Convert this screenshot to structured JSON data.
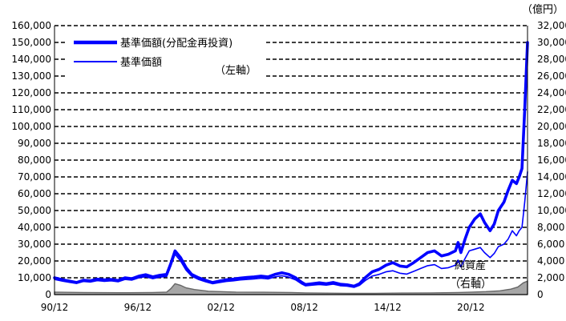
{
  "chart_data": {
    "type": "line",
    "left_axis": {
      "min": 0,
      "max": 160000,
      "step": 10000,
      "tick_labels": [
        "0",
        "10,000",
        "20,000",
        "30,000",
        "40,000",
        "50,000",
        "60,000",
        "70,000",
        "80,000",
        "90,000",
        "100,000",
        "110,000",
        "120,000",
        "130,000",
        "140,000",
        "150,000",
        "160,000"
      ]
    },
    "right_axis": {
      "min": 0,
      "max": 32000,
      "step": 2000,
      "unit": "（億円）",
      "tick_labels": [
        "0",
        "2,000",
        "4,000",
        "6,000",
        "8,000",
        "10,000",
        "12,000",
        "14,000",
        "16,000",
        "18,000",
        "20,000",
        "22,000",
        "24,000",
        "26,000",
        "28,000",
        "30,000",
        "32,000"
      ]
    },
    "x_axis": {
      "min": 1990.92,
      "max": 2025.0,
      "tick_labels": [
        "90/12",
        "96/12",
        "02/12",
        "08/12",
        "14/12",
        "20/12"
      ],
      "tick_values": [
        1990.92,
        1996.92,
        2002.92,
        2008.92,
        2014.92,
        2020.92
      ]
    },
    "grid": true,
    "legend": {
      "placement": "top-left",
      "axis_note": "（左軸）",
      "entries": [
        "基準価額(分配金再投資)",
        "基準価額"
      ]
    },
    "annotations": {
      "net_assets_label": "純資産",
      "net_assets_axis_note": "（右軸）"
    },
    "colors": {
      "line": "#0000ff",
      "area": "#666666",
      "area_fill": "#a6a6a6",
      "grid": "#000000"
    },
    "series": [
      {
        "name": "基準価額(分配金再投資)",
        "axis": "left",
        "style": "thick",
        "x": [
          1990.92,
          1991.5,
          1992.0,
          1992.5,
          1993.0,
          1993.5,
          1994.0,
          1994.5,
          1995.0,
          1995.5,
          1996.0,
          1996.5,
          1997.0,
          1997.5,
          1998.0,
          1998.5,
          1999.0,
          1999.3,
          1999.6,
          2000.0,
          2000.4,
          2000.8,
          2001.3,
          2001.8,
          2002.3,
          2002.8,
          2003.3,
          2003.8,
          2004.3,
          2004.8,
          2005.3,
          2005.8,
          2006.3,
          2006.8,
          2007.3,
          2007.8,
          2008.3,
          2008.7,
          2009.0,
          2009.5,
          2010.0,
          2010.5,
          2011.0,
          2011.5,
          2012.0,
          2012.5,
          2012.9,
          2013.3,
          2013.8,
          2014.3,
          2014.8,
          2015.3,
          2015.8,
          2016.3,
          2016.8,
          2017.3,
          2017.8,
          2018.3,
          2018.8,
          2019.3,
          2019.8,
          2020.0,
          2020.2,
          2020.5,
          2020.8,
          2021.2,
          2021.6,
          2021.9,
          2022.3,
          2022.6,
          2022.9,
          2023.3,
          2023.6,
          2023.9,
          2024.2,
          2024.4,
          2024.6,
          2024.8,
          2025.0
        ],
        "values": [
          10000,
          8800,
          8000,
          7200,
          8500,
          8200,
          9200,
          8700,
          9000,
          8400,
          10000,
          9500,
          11000,
          11800,
          10500,
          11500,
          12000,
          18500,
          26000,
          22000,
          16000,
          12000,
          10000,
          8500,
          7200,
          8000,
          8800,
          9200,
          9800,
          10200,
          10500,
          11000,
          10500,
          12000,
          13000,
          12000,
          10000,
          7500,
          6000,
          6500,
          7000,
          6500,
          7200,
          6200,
          5800,
          5000,
          6500,
          10000,
          13500,
          15000,
          17500,
          19000,
          17000,
          16500,
          19000,
          22000,
          25000,
          26000,
          23000,
          24000,
          26000,
          31000,
          25000,
          33000,
          40000,
          45000,
          48000,
          43000,
          38000,
          42000,
          50000,
          55000,
          62000,
          68000,
          66000,
          70000,
          75000,
          110000,
          150000
        ]
      },
      {
        "name": "基準価額",
        "axis": "left",
        "style": "thin",
        "x": [
          1990.92,
          1991.5,
          1992.0,
          1992.5,
          1993.0,
          1993.5,
          1994.0,
          1994.5,
          1995.0,
          1995.5,
          1996.0,
          1996.5,
          1997.0,
          1997.5,
          1998.0,
          1998.5,
          1999.0,
          1999.3,
          1999.6,
          2000.0,
          2000.4,
          2000.8,
          2001.3,
          2001.8,
          2002.3,
          2002.8,
          2003.3,
          2003.8,
          2004.3,
          2004.8,
          2005.3,
          2005.8,
          2006.3,
          2006.8,
          2007.3,
          2007.8,
          2008.3,
          2008.7,
          2009.0,
          2009.5,
          2010.0,
          2010.5,
          2011.0,
          2011.5,
          2012.0,
          2012.5,
          2012.9,
          2013.3,
          2013.8,
          2014.3,
          2014.8,
          2015.3,
          2015.8,
          2016.3,
          2016.8,
          2017.3,
          2017.8,
          2018.3,
          2018.8,
          2019.3,
          2019.8,
          2020.0,
          2020.2,
          2020.5,
          2020.8,
          2021.2,
          2021.6,
          2021.9,
          2022.3,
          2022.6,
          2022.9,
          2023.3,
          2023.6,
          2023.9,
          2024.2,
          2024.4,
          2024.6,
          2024.8,
          2025.0
        ],
        "values": [
          9000,
          8000,
          7300,
          6600,
          7800,
          7500,
          8300,
          7900,
          8200,
          7600,
          9000,
          8600,
          10000,
          10600,
          9500,
          10400,
          10800,
          17000,
          24000,
          20000,
          14500,
          11000,
          9000,
          7600,
          6500,
          7200,
          7800,
          8200,
          8700,
          9000,
          9300,
          9700,
          9300,
          10500,
          11200,
          10400,
          8700,
          6500,
          5200,
          5600,
          6000,
          5600,
          6200,
          5300,
          5000,
          4300,
          5500,
          8300,
          11000,
          12000,
          13500,
          14200,
          12700,
          12200,
          13800,
          15500,
          17200,
          17800,
          15500,
          16000,
          17500,
          20500,
          16500,
          21500,
          26000,
          27000,
          28000,
          25000,
          22000,
          24500,
          28500,
          30000,
          33000,
          38000,
          35000,
          38000,
          40000,
          55000,
          73000
        ]
      },
      {
        "name": "純資産",
        "axis": "right",
        "style": "area",
        "x": [
          1990.92,
          1993.0,
          1996.0,
          1998.0,
          1999.0,
          1999.3,
          1999.6,
          2000.0,
          2000.4,
          2001.0,
          2002.0,
          2004.0,
          2006.0,
          2008.0,
          2009.0,
          2012.0,
          2014.0,
          2016.0,
          2018.0,
          2020.0,
          2021.0,
          2022.0,
          2023.0,
          2023.8,
          2024.3,
          2024.7,
          2025.0
        ],
        "values": [
          300,
          250,
          220,
          250,
          300,
          700,
          1300,
          1100,
          800,
          600,
          400,
          300,
          280,
          250,
          200,
          150,
          150,
          180,
          200,
          250,
          300,
          350,
          450,
          650,
          900,
          1400,
          1600
        ]
      }
    ]
  }
}
